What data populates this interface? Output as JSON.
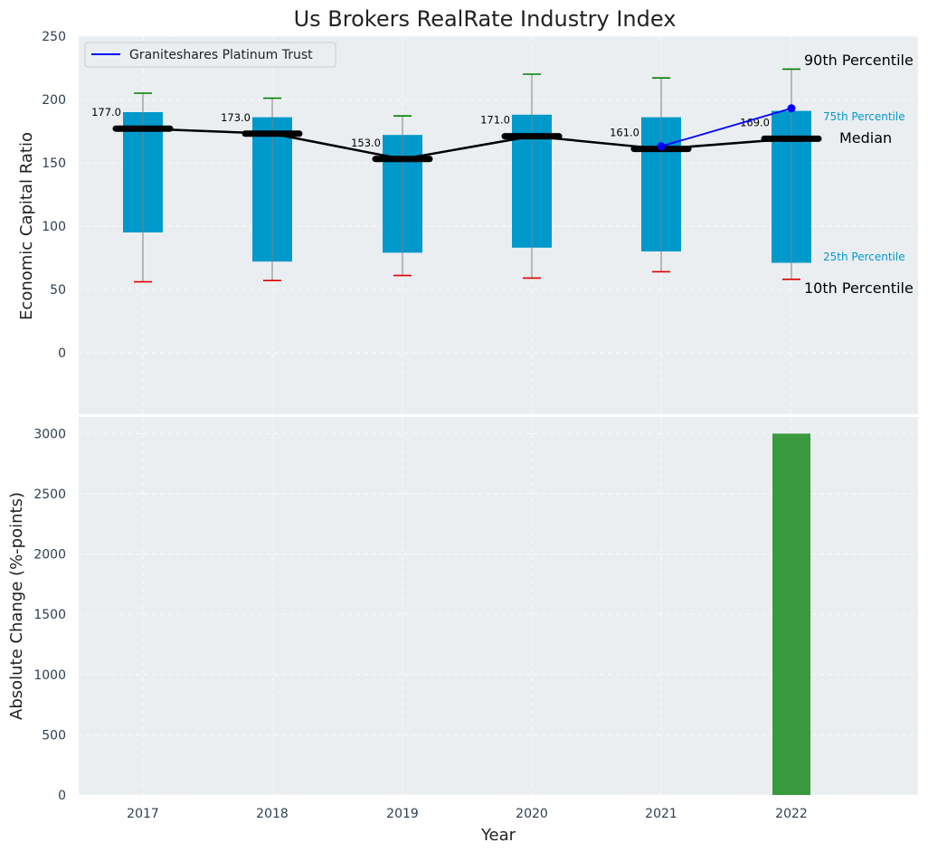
{
  "chart_data": {
    "title": "Us Brokers RealRate Industry Index",
    "type": "box-percentile + bar",
    "xlabel": "Year",
    "years": [
      "2017",
      "2018",
      "2019",
      "2020",
      "2021",
      "2022"
    ],
    "top": {
      "ylabel": "Economic Capital Ratio",
      "ylim": [
        -50,
        250
      ],
      "yticks": [
        "0",
        "50",
        "100",
        "150",
        "200",
        "250"
      ],
      "p10": [
        56,
        57,
        61,
        59,
        64,
        58
      ],
      "p25": [
        95,
        72,
        79,
        83,
        80,
        71
      ],
      "median": [
        177,
        173,
        153,
        171,
        161,
        169
      ],
      "p75": [
        190,
        186,
        172,
        188,
        186,
        191
      ],
      "p90": [
        205,
        201,
        187,
        220,
        217,
        224
      ],
      "median_labels": [
        "177.0",
        "173.0",
        "153.0",
        "171.0",
        "161.0",
        "169.0"
      ],
      "company_series": {
        "name": "Graniteshares Platinum Trust",
        "years": [
          "2021",
          "2022"
        ],
        "values": [
          163,
          193
        ],
        "color": "#0000ff"
      },
      "annotations": {
        "p90": "90th Percentile",
        "p75": "75th Percentile",
        "median": "Median",
        "p25": "25th Percentile",
        "p10": "10th Percentile"
      },
      "legend_position": "top-left"
    },
    "bottom": {
      "ylabel": "Absolute Change (%-points)",
      "ylim": [
        0,
        3150
      ],
      "yticks": [
        "0",
        "500",
        "1000",
        "1500",
        "2000",
        "2500",
        "3000"
      ],
      "values": [
        0,
        0,
        0,
        0,
        0,
        3000
      ],
      "bar_color": "#3a9a3e"
    },
    "colors": {
      "box": "#0099cc",
      "whisker": "#808080",
      "cap_high": "#008000",
      "cap_low": "#e00000",
      "median_line": "#000000",
      "panel_bg": "#eaeef0"
    }
  }
}
